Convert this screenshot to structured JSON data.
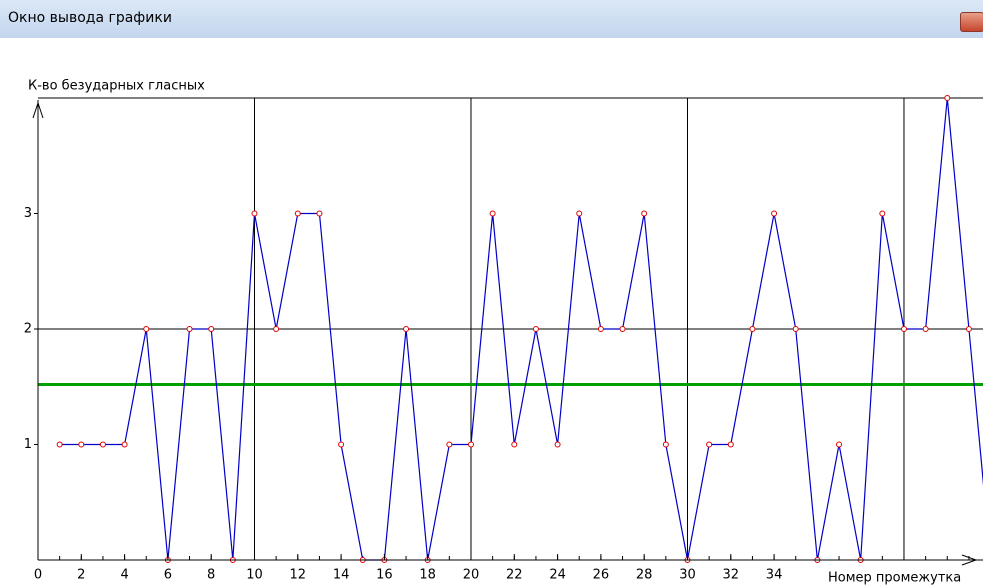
{
  "window": {
    "title": "Окно вывода графики"
  },
  "chart_data": {
    "type": "line",
    "ylabel": "К-во безударных гласных",
    "xlabel": "Номер промежутка",
    "x": [
      1,
      2,
      3,
      4,
      5,
      6,
      7,
      8,
      9,
      10,
      11,
      12,
      13,
      14,
      15,
      16,
      17,
      18,
      19,
      20,
      21,
      22,
      23,
      24,
      25,
      26,
      27,
      28,
      29,
      30,
      31,
      32,
      33,
      34,
      35,
      36,
      37,
      38,
      39,
      40,
      41,
      42,
      43,
      44
    ],
    "series": [
      {
        "color": "#0000c8",
        "marker_color": "#e00000",
        "values": [
          1,
          1,
          1,
          1,
          2,
          0,
          2,
          2,
          0,
          3,
          2,
          3,
          3,
          1,
          0,
          0,
          2,
          0,
          1,
          1,
          3,
          1,
          2,
          1,
          3,
          2,
          2,
          3,
          1,
          0,
          1,
          1,
          2,
          3,
          2,
          0,
          1,
          0,
          3,
          2,
          2,
          4,
          2,
          0
        ]
      }
    ],
    "mean_line": {
      "value": 1.52,
      "color": "#00a000"
    },
    "xlim": [
      0,
      43.65
    ],
    "ylim": [
      0,
      4
    ],
    "xticks": [
      0,
      2,
      4,
      6,
      8,
      10,
      12,
      14,
      16,
      18,
      20,
      22,
      24,
      26,
      28,
      30,
      32,
      34
    ],
    "yticks": [
      1,
      2,
      3
    ],
    "xgrid": [
      10,
      20,
      30,
      40
    ],
    "ygrid": [
      2,
      4
    ],
    "grid": true
  }
}
